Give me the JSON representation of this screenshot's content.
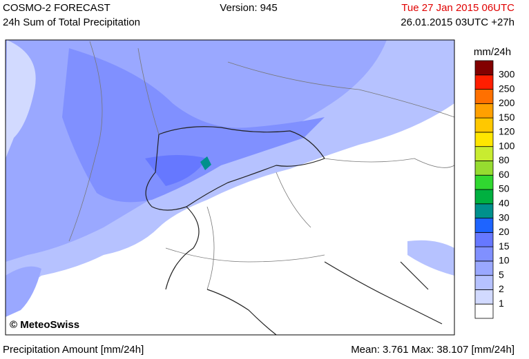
{
  "header": {
    "title": "COSMO-2 FORECAST",
    "subtitle": "24h Sum of Total Precipitation",
    "version": "Version: 945",
    "valid_time": "Tue 27 Jan 2015 06UTC",
    "run_time": "26.01.2015 03UTC +27h"
  },
  "map": {
    "credit": "© MeteoSwiss"
  },
  "legend": {
    "unit": "mm/24h",
    "colors": [
      "#ffffff",
      "#d2daff",
      "#b6c2ff",
      "#9aa8ff",
      "#8090ff",
      "#6678ff",
      "#1e64ff",
      "#00908c",
      "#00b040",
      "#30d830",
      "#96dc30",
      "#c8ec30",
      "#ffe600",
      "#ffc800",
      "#ffa000",
      "#ff7000",
      "#ff1e00",
      "#820000"
    ],
    "labels": [
      "1",
      "2",
      "5",
      "10",
      "15",
      "20",
      "30",
      "40",
      "50",
      "60",
      "80",
      "100",
      "120",
      "150",
      "200",
      "250",
      "300"
    ]
  },
  "footer": {
    "left": "Precipitation Amount [mm/24h]",
    "right": "Mean:  3.761 Max:  38.107 [mm/24h]"
  }
}
